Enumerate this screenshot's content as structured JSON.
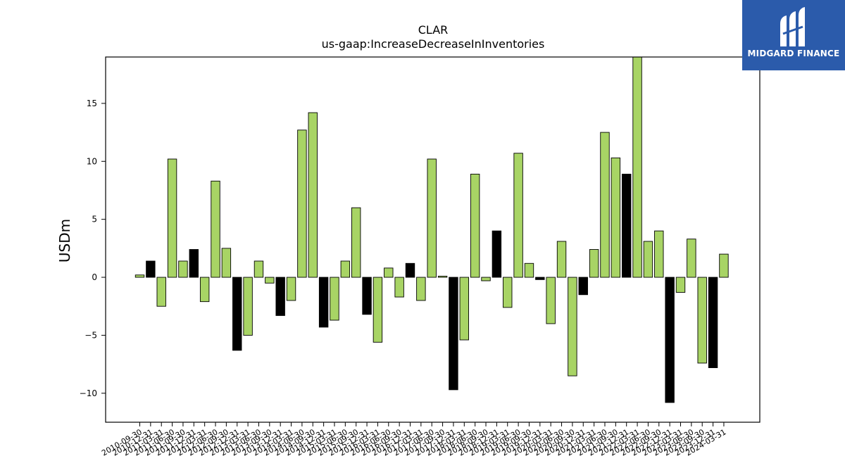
{
  "logo": {
    "text": "MIDGARD FINANCE"
  },
  "colors": {
    "positive": "#a8d465",
    "negative": "#000000",
    "logo_bg": "#2b5bab"
  },
  "chart_data": {
    "type": "bar",
    "title": "CLAR",
    "subtitle": "us-gaap:IncreaseDecreaseInInventories",
    "ylabel": "USDm",
    "xlabel": "",
    "ylim": [
      -12.5,
      19
    ],
    "yticks": [
      -10,
      -5,
      0,
      5,
      10,
      15
    ],
    "ytick_labels": [
      "−10",
      "−5",
      "0",
      "5",
      "10",
      "15"
    ],
    "grid": false,
    "categories": [
      "2010-09-30",
      "2010-12-31",
      "2011-03-31",
      "2011-06-30",
      "2011-09-30",
      "2011-12-31",
      "2012-03-31",
      "2012-06-30",
      "2012-09-30",
      "2012-12-31",
      "2013-03-31",
      "2013-06-30",
      "2013-09-30",
      "2013-12-31",
      "2014-03-31",
      "2014-06-30",
      "2014-09-30",
      "2014-12-31",
      "2015-03-31",
      "2015-06-30",
      "2015-09-30",
      "2015-12-31",
      "2016-03-31",
      "2016-06-30",
      "2016-09-30",
      "2016-12-31",
      "2017-03-31",
      "2017-06-30",
      "2017-09-30",
      "2017-12-31",
      "2018-03-31",
      "2018-06-30",
      "2018-09-30",
      "2018-12-31",
      "2019-03-31",
      "2019-06-30",
      "2019-09-30",
      "2019-12-31",
      "2020-03-31",
      "2020-06-30",
      "2020-09-30",
      "2020-12-31",
      "2021-03-31",
      "2021-06-30",
      "2021-09-30",
      "2021-12-31",
      "2022-03-31",
      "2022-06-30",
      "2022-09-30",
      "2022-12-31",
      "2023-03-31",
      "2023-06-30",
      "2023-09-30",
      "2023-12-31",
      "2024-03-31"
    ],
    "series": [
      {
        "values": [
          0.2,
          1.4,
          -2.5,
          10.2,
          1.4,
          2.4,
          -2.1,
          8.3,
          2.5,
          -6.3,
          -5.0,
          1.4,
          -0.5,
          -3.3,
          -2.0,
          12.7,
          14.2,
          -4.3,
          -3.7,
          1.4,
          6.0,
          -3.2,
          -5.6,
          0.8,
          -1.7,
          1.2,
          -2.0,
          10.2,
          0.1,
          -9.7,
          -5.4,
          8.9,
          -0.3,
          4.0,
          -2.6,
          10.7,
          1.2,
          -0.2,
          -4.0,
          3.1,
          -8.5,
          -1.5,
          2.4,
          12.5,
          10.3,
          8.9,
          19.0,
          3.1,
          4.0,
          -10.8,
          -1.3,
          3.3,
          -7.4,
          -7.8,
          2.0
        ],
        "highlight": [
          false,
          true,
          false,
          false,
          false,
          true,
          false,
          false,
          false,
          true,
          false,
          false,
          false,
          true,
          false,
          false,
          false,
          true,
          false,
          false,
          false,
          true,
          false,
          false,
          false,
          true,
          false,
          false,
          false,
          true,
          false,
          false,
          false,
          true,
          false,
          false,
          false,
          true,
          false,
          false,
          false,
          true,
          false,
          false,
          false,
          true,
          false,
          false,
          false,
          true,
          false,
          false,
          false,
          true,
          false
        ]
      }
    ]
  }
}
